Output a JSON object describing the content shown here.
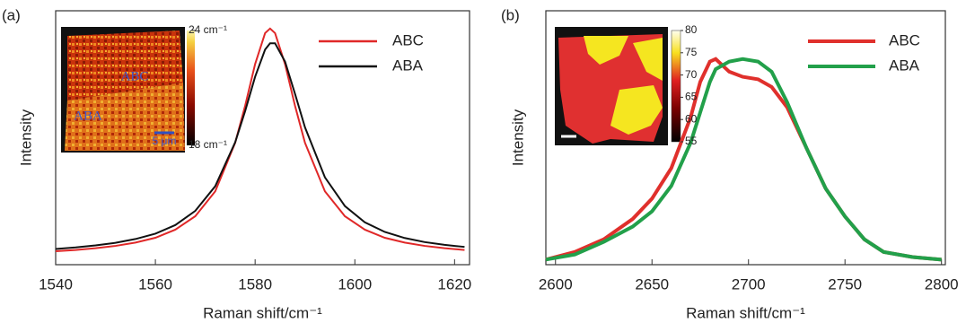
{
  "chart_data": [
    {
      "type": "line",
      "panel_label": "(a)",
      "xlabel": "Raman shift/cm⁻¹",
      "ylabel": "Intensity",
      "xlim": [
        1540,
        1623
      ],
      "xticks": [
        1540,
        1560,
        1580,
        1600,
        1620
      ],
      "ylim": [
        0,
        1
      ],
      "x": [
        1540,
        1544,
        1548,
        1552,
        1556,
        1560,
        1564,
        1568,
        1572,
        1576,
        1578,
        1580,
        1582,
        1583,
        1584,
        1586,
        1588,
        1590,
        1594,
        1598,
        1602,
        1606,
        1610,
        1614,
        1618,
        1622
      ],
      "series": [
        {
          "name": "ABC",
          "color": "#e02828",
          "values": [
            0.053,
            0.058,
            0.065,
            0.074,
            0.087,
            0.106,
            0.138,
            0.191,
            0.289,
            0.48,
            0.626,
            0.79,
            0.912,
            0.93,
            0.912,
            0.79,
            0.626,
            0.48,
            0.289,
            0.191,
            0.138,
            0.106,
            0.087,
            0.074,
            0.065,
            0.058
          ]
        },
        {
          "name": "ABA",
          "color": "#111111",
          "values": [
            0.062,
            0.068,
            0.076,
            0.086,
            0.101,
            0.122,
            0.156,
            0.212,
            0.309,
            0.482,
            0.605,
            0.74,
            0.847,
            0.872,
            0.872,
            0.8,
            0.673,
            0.541,
            0.344,
            0.231,
            0.167,
            0.129,
            0.105,
            0.089,
            0.078,
            0.07
          ]
        }
      ],
      "legend": "upper right",
      "inset": {
        "labels": [
          "ABC",
          "ABA"
        ],
        "scale_bar": "5 μm",
        "colorbar_lim": [
          18,
          24
        ],
        "colorbar_ticks": [
          {
            "value": 24,
            "label": "24 cm⁻¹"
          },
          {
            "value": 18,
            "label": "18 cm⁻¹"
          }
        ]
      }
    },
    {
      "type": "line",
      "panel_label": "(b)",
      "xlabel": "Raman shift/cm⁻¹",
      "ylabel": "Intensity",
      "xlim": [
        2595,
        2802
      ],
      "xticks": [
        2600,
        2650,
        2700,
        2750,
        2800
      ],
      "ylim": [
        0,
        1
      ],
      "x": [
        2595,
        2610,
        2625,
        2640,
        2650,
        2660,
        2670,
        2675,
        2680,
        2683,
        2690,
        2697,
        2705,
        2712,
        2720,
        2730,
        2740,
        2750,
        2760,
        2770,
        2785,
        2800
      ],
      "series": [
        {
          "name": "ABC",
          "color": "#e0302c",
          "values": [
            0.02,
            0.05,
            0.1,
            0.18,
            0.26,
            0.38,
            0.58,
            0.72,
            0.8,
            0.81,
            0.76,
            0.74,
            0.73,
            0.7,
            0.62,
            0.46,
            0.3,
            0.19,
            0.1,
            0.05,
            0.03,
            0.02
          ]
        },
        {
          "name": "ABA",
          "color": "#22a04a",
          "values": [
            0.02,
            0.04,
            0.09,
            0.15,
            0.21,
            0.31,
            0.48,
            0.6,
            0.72,
            0.77,
            0.8,
            0.81,
            0.8,
            0.76,
            0.64,
            0.46,
            0.3,
            0.19,
            0.1,
            0.05,
            0.03,
            0.02
          ]
        }
      ],
      "legend": "upper right",
      "inset": {
        "colorbar_lim": [
          55,
          80
        ],
        "colorbar_ticks": [
          80,
          75,
          70,
          65,
          60,
          55
        ]
      }
    }
  ]
}
